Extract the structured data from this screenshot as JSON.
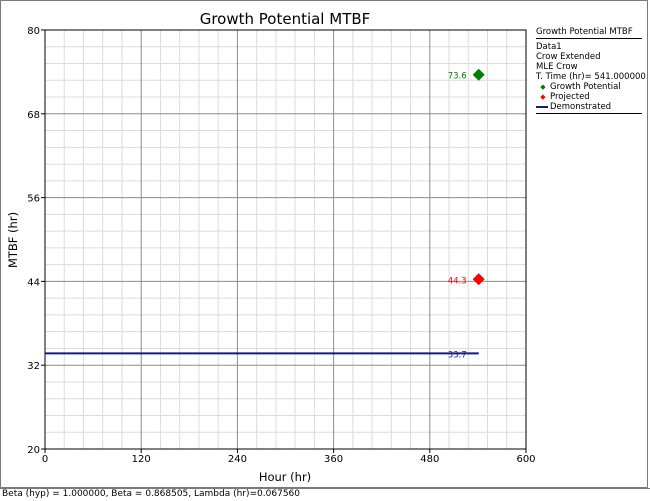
{
  "chart_data": {
    "type": "scatter",
    "title": "Growth Potential MTBF",
    "xlabel": "Hour (hr)",
    "ylabel": "MTBF (hr)",
    "xlim": [
      0,
      600
    ],
    "ylim": [
      20,
      80
    ],
    "x_ticks": [
      "0",
      "120",
      "240",
      "360",
      "480",
      "600"
    ],
    "y_ticks": [
      "20",
      "32",
      "44",
      "56",
      "68",
      "80"
    ],
    "grid": true,
    "legend_position": "right",
    "series": [
      {
        "name": "Growth Potential",
        "type": "marker",
        "marker": "diamond",
        "color": "#008000",
        "points": [
          {
            "x": 541,
            "y": 73.6,
            "label": "73.6"
          }
        ]
      },
      {
        "name": "Projected",
        "type": "marker",
        "marker": "diamond",
        "color": "#ff0000",
        "points": [
          {
            "x": 541,
            "y": 44.3,
            "label": "44.3"
          }
        ]
      },
      {
        "name": "Demonstrated",
        "type": "line",
        "color": "#1a1a7a",
        "points": [
          {
            "x": 0,
            "y": 33.7
          },
          {
            "x": 541,
            "y": 33.7,
            "label": "33.7"
          }
        ]
      }
    ]
  },
  "legend": {
    "title": "Growth Potential MTBF",
    "lines": [
      "Data1",
      "Crow Extended",
      "MLE Crow",
      "T. Time (hr)= 541.000000"
    ],
    "entries": [
      "Growth Potential",
      "Projected",
      "Demonstrated"
    ]
  },
  "footer": "Beta (hyp) = 1.000000, Beta = 0.868505, Lambda (hr)=0.067560",
  "colors": {
    "major_grid": "#8c8c8c",
    "minor_grid": "#dcdcdc",
    "axis": "#000000"
  }
}
